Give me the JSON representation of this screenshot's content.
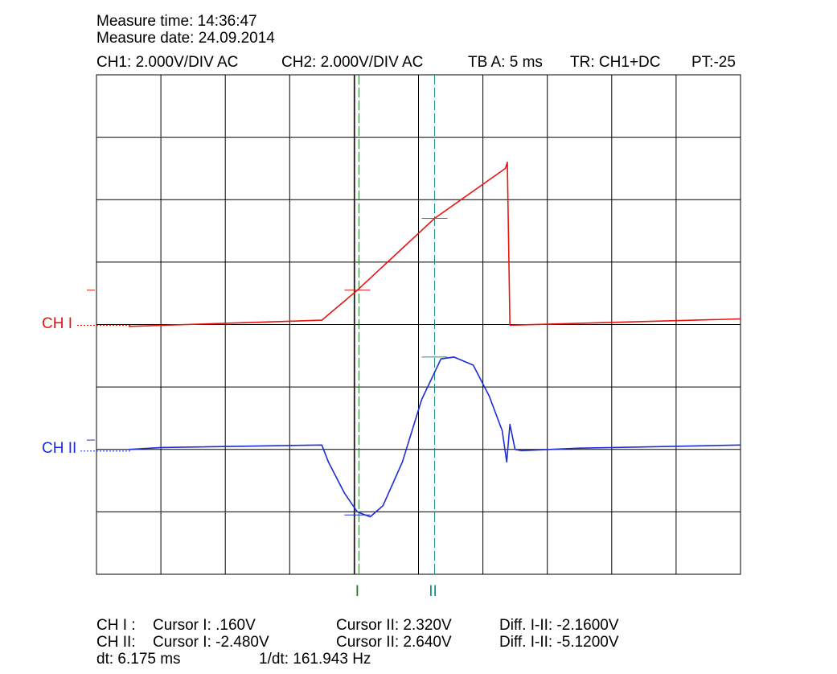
{
  "header": {
    "measure_time": "Measure time: 14:36:47",
    "measure_date": "Measure date: 24.09.2014",
    "settings": {
      "ch1": "CH1: 2.000V/DIV AC",
      "ch2": "CH2: 2.000V/DIV AC",
      "timebase": "TB A: 5 ms",
      "trigger": "TR: CH1+DC",
      "pretrigger": "PT:-25"
    }
  },
  "channels": {
    "ch1": {
      "label": "CH I",
      "color": "#e8140f"
    },
    "ch2": {
      "label": "CH II",
      "color": "#1d2bd9"
    }
  },
  "cursors": {
    "c1": {
      "label": "I",
      "color": "#1f7a1f"
    },
    "c2": {
      "label": "II",
      "color": "#1a8c8c"
    }
  },
  "readout": {
    "row1": {
      "ch": "CH I :",
      "cursor1": "Cursor I: .160V",
      "cursor2": "Cursor II: 2.320V",
      "diff": "Diff. I-II: -2.1600V"
    },
    "row2": {
      "ch": "CH II:",
      "cursor1": "Cursor I: -2.480V",
      "cursor2": "Cursor II: 2.640V",
      "diff": "Diff. I-II: -5.1200V"
    },
    "row3": {
      "dt": "dt: 6.175 ms",
      "inv_dt": "1/dt: 161.943 Hz"
    }
  },
  "chart_data": {
    "type": "line",
    "grid": true,
    "divisions": {
      "x": 10,
      "y": 8
    },
    "xlim_div": [
      0,
      10
    ],
    "ylim_div": [
      -4,
      4
    ],
    "series": [
      {
        "name": "CH I",
        "points_div": [
          [
            0.5,
            -0.03
          ],
          [
            3.5,
            0.07
          ],
          [
            4.05,
            0.55
          ],
          [
            5.25,
            1.7
          ],
          [
            6.35,
            2.5
          ],
          [
            6.38,
            2.6
          ],
          [
            6.42,
            -0.01
          ],
          [
            10,
            0.09
          ]
        ]
      },
      {
        "name": "CH II",
        "points_div": [
          [
            0.5,
            -2.0
          ],
          [
            1.0,
            -1.97
          ],
          [
            3.5,
            -1.93
          ],
          [
            3.6,
            -2.2
          ],
          [
            3.85,
            -2.7
          ],
          [
            4.05,
            -3.0
          ],
          [
            4.25,
            -3.08
          ],
          [
            4.45,
            -2.9
          ],
          [
            4.75,
            -2.2
          ],
          [
            5.05,
            -1.2
          ],
          [
            5.35,
            -0.55
          ],
          [
            5.55,
            -0.52
          ],
          [
            5.85,
            -0.65
          ],
          [
            6.1,
            -1.15
          ],
          [
            6.3,
            -1.7
          ],
          [
            6.37,
            -2.2
          ],
          [
            6.42,
            -1.6
          ],
          [
            6.5,
            -2.0
          ],
          [
            6.6,
            -2.02
          ],
          [
            7.5,
            -1.98
          ],
          [
            10,
            -1.93
          ]
        ]
      }
    ],
    "cursor_positions_div": [
      4.05,
      5.25
    ],
    "cursor_marks": [
      {
        "channel": "CH I",
        "x_div": 4.05,
        "y_div": 0.55
      },
      {
        "channel": "CH I",
        "x_div": 5.25,
        "y_div": 1.7
      },
      {
        "channel": "CH II",
        "x_div": 4.05,
        "y_div": -3.05
      },
      {
        "channel": "CH II",
        "x_div": 5.25,
        "y_div": -0.52
      }
    ]
  }
}
